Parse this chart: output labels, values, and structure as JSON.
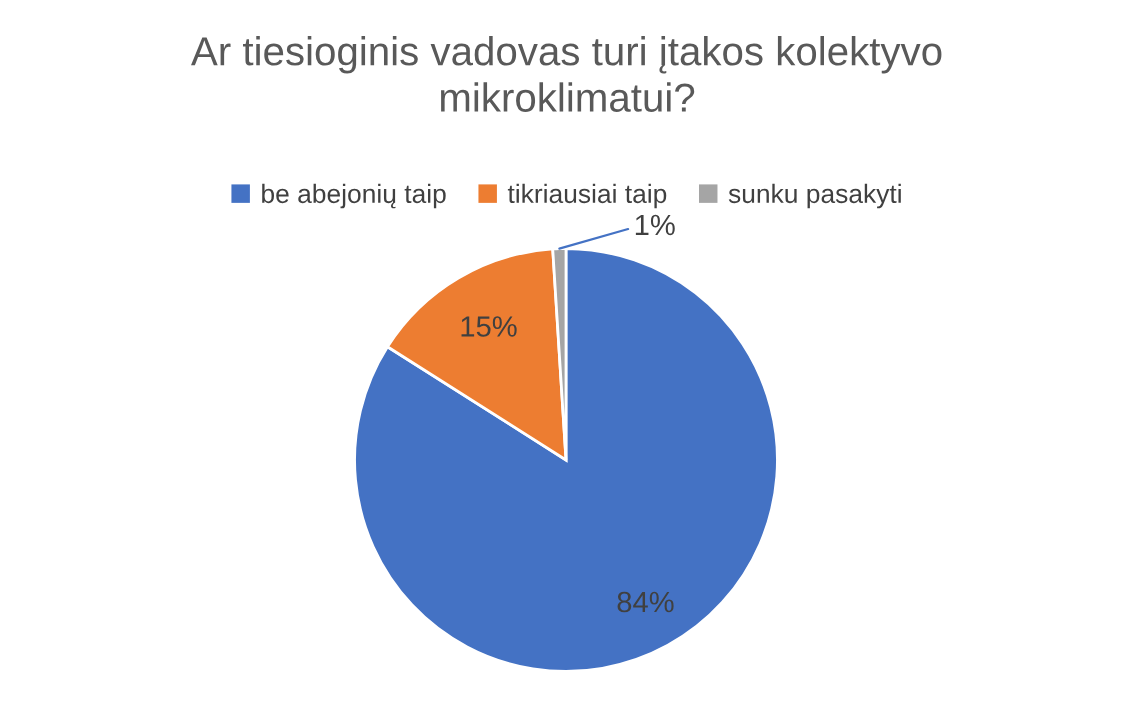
{
  "chart_data": {
    "type": "pie",
    "title": "Ar tiesioginis vadovas turi įtakos kolektyvo\nmikroklimatui?",
    "categories": [
      "be abejonių taip",
      "tikriausiai taip",
      "sunku pasakyti"
    ],
    "values": [
      84,
      15,
      1
    ],
    "colors": [
      "#4472c4",
      "#ed7d31",
      "#a5a5a5"
    ],
    "value_labels": [
      "84%",
      "15%",
      "1%"
    ],
    "legend": "top"
  }
}
